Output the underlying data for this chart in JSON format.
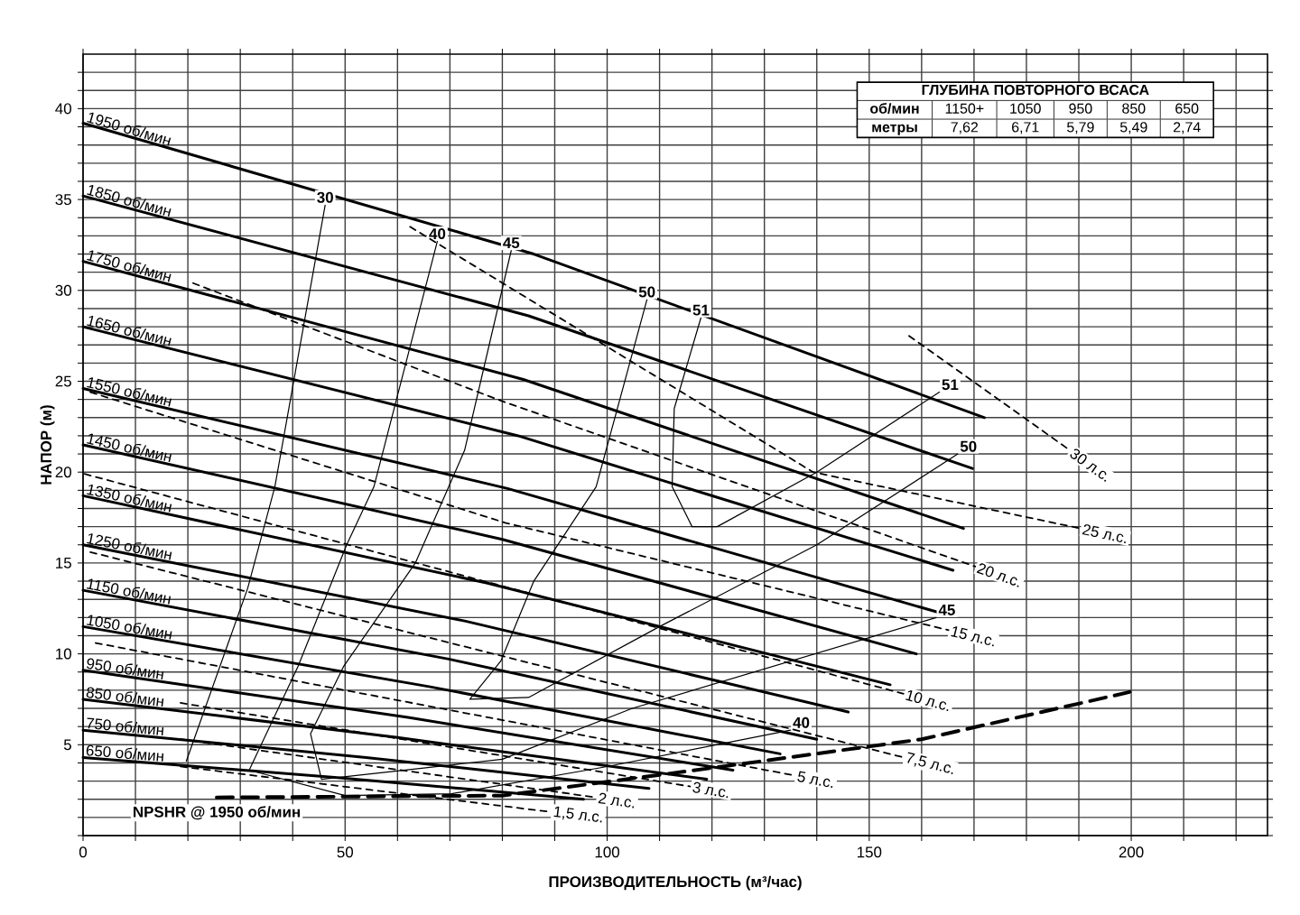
{
  "chart_data": {
    "type": "line",
    "xlabel": "ПРОИЗВОДИТЕЛЬНОСТЬ (м³/час)",
    "ylabel": "НАПОР (м)",
    "xlim": [
      0,
      226
    ],
    "ylim": [
      0,
      43
    ],
    "grid": true,
    "xticks": [
      0,
      {
        "value": 10,
        "label": null
      },
      {
        "value": 20,
        "label": null
      },
      {
        "value": 30,
        "label": null
      },
      {
        "value": 40,
        "label": null
      },
      50,
      {
        "value": 60,
        "label": null
      },
      {
        "value": 70,
        "label": null
      },
      {
        "value": 80,
        "label": null
      },
      {
        "value": 90,
        "label": null
      },
      100,
      {
        "value": 110,
        "label": null
      },
      {
        "value": 120,
        "label": null
      },
      {
        "value": 130,
        "label": null
      },
      {
        "value": 140,
        "label": null
      },
      150,
      {
        "value": 160,
        "label": null
      },
      {
        "value": 170,
        "label": null
      },
      {
        "value": 180,
        "label": null
      },
      {
        "value": 190,
        "label": null
      },
      200,
      {
        "value": 210,
        "label": null
      },
      {
        "value": 220,
        "label": null
      }
    ],
    "yticks": [
      {
        "value": 0,
        "label": null
      },
      {
        "value": 1,
        "label": null
      },
      {
        "value": 2,
        "label": null
      },
      {
        "value": 3,
        "label": null
      },
      {
        "value": 4,
        "label": null
      },
      5,
      {
        "value": 6,
        "label": null
      },
      {
        "value": 7,
        "label": null
      },
      {
        "value": 8,
        "label": null
      },
      {
        "value": 9,
        "label": null
      },
      10,
      {
        "value": 11,
        "label": null
      },
      {
        "value": 12,
        "label": null
      },
      {
        "value": 13,
        "label": null
      },
      {
        "value": 14,
        "label": null
      },
      15,
      {
        "value": 16,
        "label": null
      },
      {
        "value": 17,
        "label": null
      },
      {
        "value": 18,
        "label": null
      },
      {
        "value": 19,
        "label": null
      },
      20,
      {
        "value": 21,
        "label": null
      },
      {
        "value": 22,
        "label": null
      },
      {
        "value": 23,
        "label": null
      },
      {
        "value": 24,
        "label": null
      },
      25,
      {
        "value": 26,
        "label": null
      },
      {
        "value": 27,
        "label": null
      },
      {
        "value": 28,
        "label": null
      },
      {
        "value": 29,
        "label": null
      },
      30,
      {
        "value": 31,
        "label": null
      },
      {
        "value": 32,
        "label": null
      },
      {
        "value": 33,
        "label": null
      },
      {
        "value": 34,
        "label": null
      },
      35,
      {
        "value": 36,
        "label": null
      },
      {
        "value": 37,
        "label": null
      },
      {
        "value": 38,
        "label": null
      },
      {
        "value": 39,
        "label": null
      },
      40,
      {
        "value": 41,
        "label": null
      },
      {
        "value": 42,
        "label": null
      }
    ],
    "annotations": [
      "ГЛУБИНА ПОВТОРНОГО ВСАСА",
      "об/мин",
      "1150+",
      "1050",
      "950",
      "850",
      "650",
      "метры",
      "7,62",
      "6,71",
      "5,79",
      "5,49",
      "2,74"
    ],
    "series": [
      {
        "name": "1950 об/мин",
        "color": "#000000",
        "line_style": "solid",
        "x": [
          0,
          86,
          172
        ],
        "values": [
          39.2,
          32.0,
          23.0
        ]
      },
      {
        "name": "1850 об/мин",
        "color": "#000000",
        "line_style": "solid",
        "x": [
          0,
          85,
          169.7
        ],
        "values": [
          35.2,
          28.6,
          20.2
        ]
      },
      {
        "name": "1750 об/мин",
        "color": "#000000",
        "line_style": "solid",
        "x": [
          0,
          84,
          168
        ],
        "values": [
          31.6,
          25.1,
          16.9
        ]
      },
      {
        "name": "1650 об/мин",
        "color": "#000000",
        "line_style": "solid",
        "x": [
          0,
          83,
          166
        ],
        "values": [
          28.0,
          22.0,
          14.6
        ]
      },
      {
        "name": "1550 об/мин",
        "color": "#000000",
        "line_style": "solid",
        "x": [
          0,
          81,
          163
        ],
        "values": [
          24.6,
          19.1,
          12.3
        ]
      },
      {
        "name": "1450 об/мин",
        "color": "#000000",
        "line_style": "solid",
        "x": [
          0,
          80,
          159
        ],
        "values": [
          21.5,
          16.3,
          10.0
        ]
      },
      {
        "name": "1350 об/мин",
        "color": "#000000",
        "line_style": "solid",
        "x": [
          0,
          77,
          154
        ],
        "values": [
          18.7,
          13.9,
          8.3
        ]
      },
      {
        "name": "1250 об/мин",
        "color": "#000000",
        "line_style": "solid",
        "x": [
          0,
          73,
          146
        ],
        "values": [
          16.0,
          11.8,
          6.8
        ]
      },
      {
        "name": "1150 об/мин",
        "color": "#000000",
        "line_style": "solid",
        "x": [
          0,
          70,
          140
        ],
        "values": [
          13.5,
          9.7,
          5.3
        ]
      },
      {
        "name": "1050 об/мин",
        "color": "#000000",
        "line_style": "solid",
        "x": [
          0,
          66,
          133
        ],
        "values": [
          11.5,
          8.2,
          4.5
        ]
      },
      {
        "name": "950 об/мин",
        "color": "#000000",
        "line_style": "solid",
        "x": [
          0,
          62,
          124
        ],
        "values": [
          9.1,
          6.5,
          3.6
        ]
      },
      {
        "name": "850 об/мин",
        "color": "#000000",
        "line_style": "solid",
        "x": [
          0,
          60,
          119
        ],
        "values": [
          7.5,
          5.4,
          3.1
        ]
      },
      {
        "name": "750 об/мин",
        "color": "#000000",
        "line_style": "solid",
        "x": [
          0,
          54,
          108
        ],
        "values": [
          5.8,
          4.3,
          2.6
        ]
      },
      {
        "name": "650 об/мин",
        "color": "#000000",
        "line_style": "solid",
        "x": [
          0,
          48,
          95.5
        ],
        "values": [
          4.3,
          3.2,
          2.0
        ]
      },
      {
        "name": "30",
        "color": "#000000",
        "line_style": "solid",
        "x": [
          46.2,
          36.6,
          31.4,
          19.7
        ],
        "values": [
          34.7,
          19.2,
          13.6,
          4.1
        ]
      },
      {
        "name": "40",
        "color": "#000000",
        "line_style": "solid",
        "x": [
          67.6,
          55.5,
          50.3,
          41,
          31.7,
          50,
          70.3,
          100,
          135
        ],
        "values": [
          32.7,
          19.2,
          16,
          9.3,
          3.6,
          2.2,
          2.3,
          3.8,
          5.8
        ]
      },
      {
        "name": "45",
        "color": "#000000",
        "line_style": "solid",
        "x": [
          81.7,
          72.8,
          63.4,
          49.7,
          43.4,
          45.5,
          80,
          104.8,
          162.8
        ],
        "values": [
          32.2,
          21.2,
          15.0,
          9.3,
          5.6,
          3.1,
          4.2,
          7.0,
          12.0
        ]
      },
      {
        "name": "50",
        "color": "#000000",
        "line_style": "solid",
        "x": [
          107.6,
          97.9,
          86,
          79.7,
          73.8,
          85,
          110,
          140,
          166.9
        ],
        "values": [
          29.5,
          19.2,
          14,
          9.6,
          7.5,
          7.6,
          11.5,
          16,
          21.0
        ]
      },
      {
        "name": "51",
        "color": "#000000",
        "line_style": "solid",
        "x": [
          117.9,
          112.8,
          112.4,
          116.2,
          121,
          140,
          163.4
        ],
        "values": [
          28.5,
          23.5,
          19.2,
          17.0,
          17.0,
          20.0,
          24.4
        ]
      },
      {
        "name": "30 л.с.",
        "color": "#000000",
        "line_style": "dashed",
        "x": [
          157.6,
          188.3
        ],
        "values": [
          27.5,
          21.2
        ]
      },
      {
        "name": "25 л.с.",
        "color": "#000000",
        "line_style": "dashed",
        "x": [
          62.4,
          139.3,
          190.3
        ],
        "values": [
          33.5,
          20.0,
          16.9
        ]
      },
      {
        "name": "20 л.с.",
        "color": "#000000",
        "line_style": "dashed",
        "x": [
          21,
          80,
          170.3
        ],
        "values": [
          30.4,
          23.9,
          14.8
        ]
      },
      {
        "name": "15 л.с.",
        "color": "#000000",
        "line_style": "dashed",
        "x": [
          1.4,
          80.7,
          165.2
        ],
        "values": [
          24.4,
          17.2,
          11.3
        ]
      },
      {
        "name": "10 л.с.",
        "color": "#000000",
        "line_style": "dashed",
        "x": [
          0.3,
          156.6
        ],
        "values": [
          19.9,
          7.8
        ]
      },
      {
        "name": "7,5 л.с.",
        "color": "#000000",
        "line_style": "dashed",
        "x": [
          1.4,
          156.6
        ],
        "values": [
          15.6,
          4.3
        ]
      },
      {
        "name": "5 л.с.",
        "color": "#000000",
        "line_style": "dashed",
        "x": [
          2.4,
          135.9
        ],
        "values": [
          10.6,
          3.3
        ]
      },
      {
        "name": "3 л.с.",
        "color": "#000000",
        "line_style": "dashed",
        "x": [
          18.6,
          115.9
        ],
        "values": [
          7.3,
          2.7
        ]
      },
      {
        "name": "2 л.с.",
        "color": "#000000",
        "line_style": "dashed",
        "x": [
          18.6,
          97.9
        ],
        "values": [
          5.3,
          2.1
        ]
      },
      {
        "name": "1,5 л.с.",
        "color": "#000000",
        "line_style": "dashed",
        "x": [
          18.6,
          89.3
        ],
        "values": [
          3.8,
          1.3
        ]
      },
      {
        "name": "NPSHR  @ 1950 об/мин",
        "color": "#000000",
        "line_style": "dashed",
        "x": [
          25.5,
          80,
          122,
          160,
          199.7
        ],
        "values": [
          2.1,
          2.2,
          3.8,
          5.3,
          7.9
        ]
      }
    ]
  }
}
